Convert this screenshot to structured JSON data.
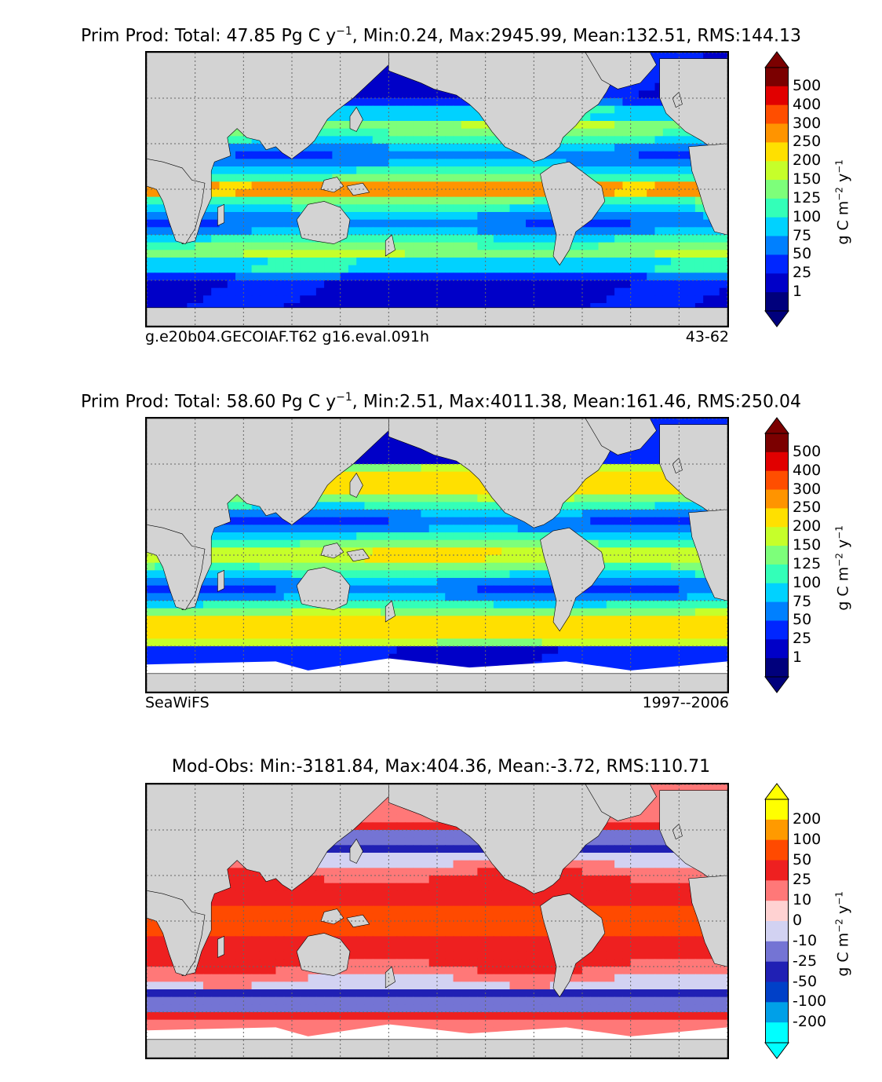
{
  "panels": [
    {
      "title_main": "Prim Prod: Total: 47.85 Pg C y",
      "title_sup": "−1",
      "title_tail": ", Min:0.24, Max:2945.99, Mean:132.51, RMS:144.13",
      "caption_left": "g.e20b04.GECOIAF.T62 g16.eval.091h",
      "caption_right": "43-62",
      "colorbar": {
        "labels": [
          "500",
          "400",
          "300",
          "250",
          "200",
          "150",
          "125",
          "100",
          "75",
          "50",
          "25",
          "1"
        ],
        "colors": [
          "#7b0000",
          "#e10000",
          "#ff4e00",
          "#ff9400",
          "#ffe000",
          "#c6ff2a",
          "#7dff7a",
          "#33ffb8",
          "#00d2ff",
          "#0080ff",
          "#0026ff",
          "#0000c8",
          "#00007c"
        ],
        "unit_main": "g C m",
        "unit_sup1": "−2",
        "unit_mid": " y",
        "unit_sup2": "−1"
      }
    },
    {
      "title_main": "Prim Prod: Total: 58.60 Pg C y",
      "title_sup": "−1",
      "title_tail": ", Min:2.51, Max:4011.38, Mean:161.46, RMS:250.04",
      "caption_left": "SeaWiFS",
      "caption_right": "1997--2006",
      "colorbar": {
        "labels": [
          "500",
          "400",
          "300",
          "250",
          "200",
          "150",
          "125",
          "100",
          "75",
          "50",
          "25",
          "1"
        ],
        "colors": [
          "#7b0000",
          "#e10000",
          "#ff4e00",
          "#ff9400",
          "#ffe000",
          "#c6ff2a",
          "#7dff7a",
          "#33ffb8",
          "#00d2ff",
          "#0080ff",
          "#0026ff",
          "#0000c8",
          "#00007c"
        ],
        "unit_main": "g C m",
        "unit_sup1": "−2",
        "unit_mid": " y",
        "unit_sup2": "−1"
      }
    },
    {
      "title_main": "Mod-Obs: Min:-3181.84, Max:404.36, Mean:-3.72, RMS:110.71",
      "title_sup": "",
      "title_tail": "",
      "caption_left": "",
      "caption_right": "",
      "colorbar": {
        "labels": [
          "200",
          "100",
          "50",
          "25",
          "10",
          "0",
          "-10",
          "-25",
          "-50",
          "-100",
          "-200"
        ],
        "colors": [
          "#ffff00",
          "#ff9a00",
          "#ff4a00",
          "#ee2020",
          "#ff7878",
          "#ffd2d2",
          "#d2d2f2",
          "#7474d4",
          "#2020b4",
          "#0040c8",
          "#00a0e8",
          "#00ffff"
        ],
        "unit_main": "g C m",
        "unit_sup1": "−2",
        "unit_mid": " y",
        "unit_sup2": "−1"
      }
    }
  ],
  "colors": {
    "land": "#d3d3d3",
    "grid": "#666666",
    "nodata": "#ffffff"
  }
}
